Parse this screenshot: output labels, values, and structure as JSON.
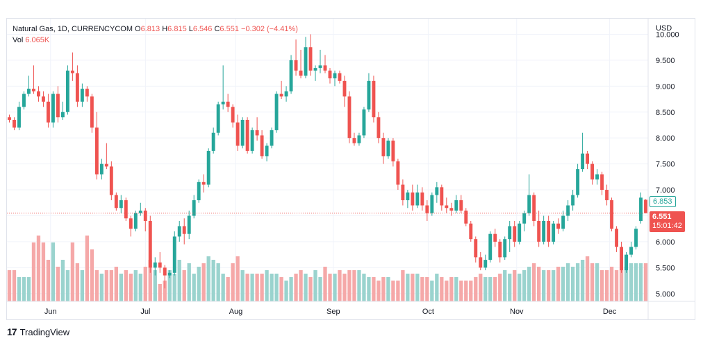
{
  "header": {
    "symbol": "Natural Gas, 1D, CURRENCYCOM",
    "open_label": "O",
    "open": "6.813",
    "high_label": "H",
    "high": "6.815",
    "low_label": "L",
    "low": "6.546",
    "close_label": "C",
    "close": "6.551",
    "change": "−0.302 (−4.41%)",
    "vol_label": "Vol",
    "vol": "6.065K"
  },
  "footer": {
    "brand": "TradingView"
  },
  "colors": {
    "up": "#26a69a",
    "down": "#ef5350",
    "up_vol": "#9ad3ce",
    "down_vol": "#f5a8a8"
  },
  "price_tags": {
    "prev": "6.853",
    "last": "6.551",
    "countdown": "15:01:42"
  },
  "chart_data": {
    "type": "candlestick",
    "currency": "USD",
    "y_ticks": [
      "10.000",
      "9.500",
      "9.000",
      "8.500",
      "8.000",
      "7.500",
      "7.000",
      "6.500",
      "6.000",
      "5.500",
      "5.000"
    ],
    "ylim": [
      4.85,
      10.3
    ],
    "x_ticks": [
      "Jun",
      "Jul",
      "Aug",
      "Sep",
      "Oct",
      "Nov",
      "Dec"
    ],
    "last_price": 6.551,
    "ohlc": [
      [
        8.4,
        8.45,
        8.3,
        8.35
      ],
      [
        8.35,
        8.4,
        8.15,
        8.2
      ],
      [
        8.2,
        8.7,
        8.15,
        8.6
      ],
      [
        8.6,
        8.9,
        8.55,
        8.85
      ],
      [
        8.85,
        9.2,
        8.8,
        8.95
      ],
      [
        8.95,
        9.4,
        8.85,
        8.9
      ],
      [
        8.9,
        9.0,
        8.7,
        8.8
      ],
      [
        8.8,
        8.9,
        8.6,
        8.7
      ],
      [
        8.7,
        8.85,
        8.2,
        8.3
      ],
      [
        8.3,
        8.9,
        8.2,
        8.85
      ],
      [
        8.85,
        9.0,
        8.3,
        8.4
      ],
      [
        8.4,
        8.7,
        8.35,
        8.5
      ],
      [
        8.5,
        9.4,
        8.45,
        9.3
      ],
      [
        9.3,
        9.65,
        9.1,
        9.25
      ],
      [
        9.25,
        9.4,
        8.6,
        8.7
      ],
      [
        8.7,
        9.05,
        8.6,
        8.95
      ],
      [
        8.95,
        9.0,
        8.7,
        8.8
      ],
      [
        8.8,
        8.85,
        8.1,
        8.2
      ],
      [
        8.2,
        8.5,
        7.2,
        7.3
      ],
      [
        7.3,
        7.6,
        7.2,
        7.5
      ],
      [
        7.5,
        7.9,
        7.4,
        7.45
      ],
      [
        7.45,
        7.55,
        6.8,
        6.9
      ],
      [
        6.9,
        6.95,
        6.6,
        6.65
      ],
      [
        6.65,
        6.9,
        6.55,
        6.8
      ],
      [
        6.8,
        6.85,
        6.4,
        6.45
      ],
      [
        6.45,
        6.5,
        6.1,
        6.25
      ],
      [
        6.25,
        6.6,
        6.2,
        6.55
      ],
      [
        6.55,
        6.75,
        6.5,
        6.6
      ],
      [
        6.6,
        6.65,
        6.2,
        6.4
      ],
      [
        6.4,
        6.5,
        5.4,
        5.5
      ],
      [
        5.5,
        5.7,
        5.35,
        5.6
      ],
      [
        5.6,
        5.8,
        5.4,
        5.5
      ],
      [
        5.5,
        5.55,
        5.1,
        5.35
      ],
      [
        5.35,
        5.45,
        5.3,
        5.4
      ],
      [
        5.4,
        6.2,
        5.35,
        6.1
      ],
      [
        6.1,
        6.4,
        6.0,
        6.3
      ],
      [
        6.3,
        6.45,
        5.95,
        6.15
      ],
      [
        6.15,
        6.6,
        6.05,
        6.5
      ],
      [
        6.5,
        6.9,
        6.45,
        6.8
      ],
      [
        6.8,
        7.2,
        6.75,
        7.15
      ],
      [
        7.15,
        7.3,
        6.95,
        7.1
      ],
      [
        7.1,
        7.8,
        7.05,
        7.75
      ],
      [
        7.75,
        8.2,
        7.7,
        8.1
      ],
      [
        8.1,
        8.7,
        8.05,
        8.65
      ],
      [
        8.65,
        9.4,
        8.55,
        8.7
      ],
      [
        8.7,
        8.85,
        8.5,
        8.6
      ],
      [
        8.6,
        8.65,
        8.2,
        8.3
      ],
      [
        8.3,
        8.45,
        7.75,
        7.85
      ],
      [
        7.85,
        8.4,
        7.8,
        8.35
      ],
      [
        8.35,
        8.4,
        7.7,
        7.75
      ],
      [
        7.75,
        8.2,
        7.7,
        8.15
      ],
      [
        8.15,
        8.4,
        7.95,
        8.05
      ],
      [
        8.05,
        8.15,
        7.6,
        7.65
      ],
      [
        7.65,
        7.9,
        7.55,
        7.85
      ],
      [
        7.85,
        8.2,
        7.8,
        8.15
      ],
      [
        8.15,
        8.9,
        8.1,
        8.85
      ],
      [
        8.85,
        9.1,
        8.75,
        8.8
      ],
      [
        8.8,
        9.0,
        8.7,
        8.9
      ],
      [
        8.9,
        9.6,
        8.85,
        9.5
      ],
      [
        9.5,
        9.9,
        9.2,
        9.3
      ],
      [
        9.3,
        9.7,
        9.15,
        9.2
      ],
      [
        9.2,
        9.95,
        9.15,
        9.75
      ],
      [
        9.75,
        10.0,
        9.2,
        9.3
      ],
      [
        9.3,
        9.4,
        9.1,
        9.35
      ],
      [
        9.35,
        9.7,
        9.25,
        9.4
      ],
      [
        9.4,
        9.6,
        9.25,
        9.3
      ],
      [
        9.3,
        9.35,
        9.05,
        9.15
      ],
      [
        9.15,
        9.3,
        9.0,
        9.25
      ],
      [
        9.25,
        9.3,
        9.05,
        9.1
      ],
      [
        9.1,
        9.2,
        8.6,
        8.8
      ],
      [
        8.8,
        8.9,
        7.9,
        8.0
      ],
      [
        8.0,
        8.1,
        7.85,
        7.9
      ],
      [
        7.9,
        8.1,
        7.85,
        8.05
      ],
      [
        8.05,
        8.6,
        8.0,
        8.55
      ],
      [
        8.55,
        9.25,
        8.5,
        9.1
      ],
      [
        9.1,
        9.2,
        8.3,
        8.4
      ],
      [
        8.4,
        8.5,
        7.9,
        8.0
      ],
      [
        8.0,
        8.1,
        7.5,
        7.65
      ],
      [
        7.65,
        8.0,
        7.6,
        7.95
      ],
      [
        7.95,
        8.0,
        7.45,
        7.55
      ],
      [
        7.55,
        7.6,
        7.0,
        7.1
      ],
      [
        7.1,
        7.2,
        6.7,
        6.8
      ],
      [
        6.8,
        7.0,
        6.65,
        6.95
      ],
      [
        6.95,
        7.1,
        6.6,
        6.7
      ],
      [
        6.7,
        7.1,
        6.65,
        6.95
      ],
      [
        6.95,
        7.05,
        6.6,
        6.7
      ],
      [
        6.7,
        6.8,
        6.4,
        6.55
      ],
      [
        6.55,
        6.95,
        6.5,
        6.9
      ],
      [
        6.9,
        7.15,
        6.75,
        7.05
      ],
      [
        7.05,
        7.1,
        6.6,
        6.7
      ],
      [
        6.7,
        6.85,
        6.55,
        6.65
      ],
      [
        6.65,
        6.75,
        6.5,
        6.6
      ],
      [
        6.6,
        6.9,
        6.55,
        6.8
      ],
      [
        6.8,
        6.9,
        6.55,
        6.6
      ],
      [
        6.6,
        6.65,
        6.3,
        6.35
      ],
      [
        6.35,
        6.4,
        6.0,
        6.05
      ],
      [
        6.05,
        6.1,
        5.6,
        5.7
      ],
      [
        5.7,
        5.8,
        5.45,
        5.5
      ],
      [
        5.5,
        5.75,
        5.45,
        5.65
      ],
      [
        5.65,
        6.2,
        5.6,
        6.15
      ],
      [
        6.15,
        6.25,
        5.9,
        6.0
      ],
      [
        6.0,
        6.05,
        5.6,
        5.7
      ],
      [
        5.7,
        6.1,
        5.65,
        6.05
      ],
      [
        6.05,
        6.4,
        5.8,
        6.3
      ],
      [
        6.3,
        6.4,
        5.9,
        6.0
      ],
      [
        6.0,
        6.4,
        5.95,
        6.35
      ],
      [
        6.35,
        6.6,
        6.2,
        6.55
      ],
      [
        6.55,
        7.3,
        6.5,
        6.9
      ],
      [
        6.9,
        6.95,
        6.3,
        6.4
      ],
      [
        6.4,
        6.6,
        5.9,
        6.0
      ],
      [
        6.0,
        6.5,
        5.95,
        6.4
      ],
      [
        6.4,
        6.5,
        5.9,
        6.0
      ],
      [
        6.0,
        6.4,
        5.95,
        6.35
      ],
      [
        6.35,
        6.45,
        6.15,
        6.25
      ],
      [
        6.25,
        6.6,
        6.2,
        6.5
      ],
      [
        6.5,
        6.8,
        6.4,
        6.7
      ],
      [
        6.7,
        7.0,
        6.6,
        6.9
      ],
      [
        6.9,
        7.5,
        6.85,
        7.4
      ],
      [
        7.4,
        8.1,
        7.35,
        7.7
      ],
      [
        7.7,
        7.75,
        7.4,
        7.5
      ],
      [
        7.5,
        7.55,
        7.1,
        7.2
      ],
      [
        7.2,
        7.4,
        7.1,
        7.3
      ],
      [
        7.3,
        7.35,
        6.9,
        7.0
      ],
      [
        7.0,
        7.1,
        6.7,
        6.8
      ],
      [
        6.8,
        6.85,
        6.2,
        6.25
      ],
      [
        6.25,
        6.3,
        5.8,
        5.9
      ],
      [
        5.9,
        6.0,
        5.4,
        5.45
      ],
      [
        5.45,
        5.8,
        5.4,
        5.75
      ],
      [
        5.75,
        6.0,
        5.7,
        5.9
      ],
      [
        5.9,
        6.3,
        5.85,
        6.25
      ],
      [
        6.4,
        6.95,
        6.35,
        6.85
      ],
      [
        6.81,
        6.82,
        6.55,
        6.55
      ]
    ],
    "volume": [
      0.45,
      0.45,
      0.35,
      0.35,
      0.35,
      0.85,
      0.95,
      0.85,
      0.6,
      0.85,
      0.5,
      0.6,
      0.45,
      0.85,
      0.55,
      0.45,
      0.95,
      0.75,
      0.45,
      0.4,
      0.45,
      0.45,
      0.5,
      0.4,
      0.45,
      0.4,
      0.45,
      0.4,
      0.5,
      0.6,
      0.45,
      0.25,
      0.3,
      0.45,
      0.4,
      0.6,
      0.45,
      0.55,
      0.4,
      0.5,
      0.55,
      0.65,
      0.6,
      0.55,
      0.4,
      0.35,
      0.55,
      0.65,
      0.45,
      0.4,
      0.4,
      0.4,
      0.4,
      0.45,
      0.4,
      0.4,
      0.35,
      0.3,
      0.35,
      0.4,
      0.45,
      0.4,
      0.35,
      0.45,
      0.35,
      0.5,
      0.4,
      0.4,
      0.45,
      0.4,
      0.45,
      0.45,
      0.45,
      0.4,
      0.35,
      0.35,
      0.3,
      0.35,
      0.35,
      0.3,
      0.3,
      0.45,
      0.4,
      0.4,
      0.4,
      0.35,
      0.35,
      0.3,
      0.4,
      0.35,
      0.3,
      0.35,
      0.35,
      0.3,
      0.3,
      0.3,
      0.35,
      0.4,
      0.35,
      0.35,
      0.35,
      0.4,
      0.45,
      0.4,
      0.45,
      0.4,
      0.45,
      0.5,
      0.55,
      0.5,
      0.45,
      0.45,
      0.45,
      0.5,
      0.5,
      0.55,
      0.5,
      0.55,
      0.6,
      0.65,
      0.55,
      0.55,
      0.45,
      0.45,
      0.5,
      0.45,
      0.45,
      0.5,
      0.55,
      0.55,
      0.55,
      0.55
    ]
  }
}
